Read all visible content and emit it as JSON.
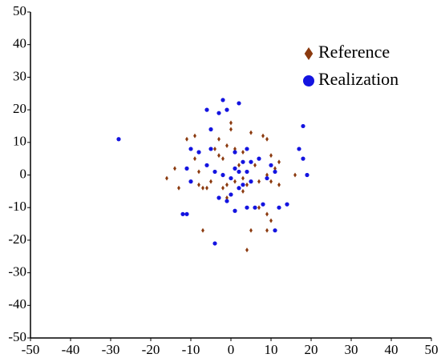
{
  "chart_data": {
    "type": "scatter",
    "xlim": [
      -50,
      50
    ],
    "ylim": [
      -50,
      50
    ],
    "xticks": [
      -50,
      -40,
      -30,
      -20,
      -10,
      0,
      10,
      20,
      30,
      40,
      50
    ],
    "yticks": [
      -50,
      -40,
      -30,
      -20,
      -10,
      0,
      10,
      20,
      30,
      40,
      50
    ],
    "legend": "upper right",
    "series": [
      {
        "name": "Reference",
        "color": "#8b3a0f",
        "marker": "diamond",
        "x": [
          -16,
          -14,
          -13,
          -11,
          -9,
          -9,
          -8,
          -8,
          -7,
          -6,
          -5,
          -7,
          -4,
          -3,
          -3,
          -2,
          -2,
          -1,
          -1,
          0,
          0,
          -1,
          1,
          1,
          2,
          3,
          3,
          3,
          4,
          4,
          5,
          5,
          6,
          7,
          7,
          8,
          9,
          9,
          9,
          9,
          10,
          10,
          10,
          11,
          12,
          12,
          16,
          -2
        ],
        "values": [
          -1,
          2,
          -4,
          11,
          12,
          5,
          1,
          -3,
          -4,
          -4,
          -2,
          -17,
          8,
          11,
          6,
          5,
          0,
          -3,
          -7,
          16,
          14,
          9,
          8,
          -2,
          3,
          7,
          -1,
          -5,
          -23,
          -3,
          13,
          -17,
          3,
          -2,
          -10,
          12,
          0,
          11,
          -12,
          -17,
          -14,
          6,
          -2,
          2,
          -3,
          4,
          0,
          -4
        ]
      },
      {
        "name": "Realization",
        "color": "#1414e0",
        "marker": "circle",
        "x": [
          -28,
          -12,
          -11,
          -11,
          -10,
          -10,
          -8,
          -6,
          -6,
          -5,
          -5,
          -4,
          -4,
          -3,
          -3,
          -2,
          -2,
          -1,
          -1,
          0,
          0,
          1,
          1,
          1,
          2,
          2,
          2,
          3,
          3,
          4,
          4,
          4,
          5,
          5,
          6,
          7,
          8,
          9,
          10,
          11,
          11,
          12,
          14,
          17,
          18,
          18,
          19
        ],
        "values": [
          11,
          -12,
          -12,
          2,
          8,
          -2,
          7,
          20,
          3,
          14,
          8,
          -21,
          1,
          -7,
          19,
          23,
          0,
          20,
          -8,
          -1,
          -6,
          2,
          -11,
          7,
          1,
          -4,
          22,
          -3,
          4,
          1,
          8,
          -10,
          -2,
          4,
          -10,
          5,
          -9,
          -1,
          3,
          1,
          -17,
          -10,
          -9,
          8,
          15,
          5,
          0
        ]
      }
    ]
  }
}
